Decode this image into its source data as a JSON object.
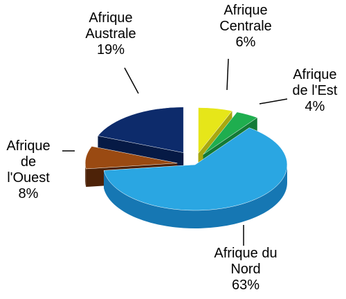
{
  "chart_data": {
    "type": "pie",
    "categories": [
      "Afrique Centrale",
      "Afrique de l'Est",
      "Afrique du Nord",
      "Afrique de l'Ouest",
      "Afrique Australe"
    ],
    "values": [
      6,
      4,
      63,
      8,
      19
    ],
    "value_labels": [
      "6%",
      "4%",
      "63%",
      "8%",
      "19%"
    ],
    "colors": [
      "#e6e619",
      "#1fae4f",
      "#2aa6e2",
      "#9a4a12",
      "#0d2b6b"
    ],
    "side_colors": [
      "#a8a810",
      "#137a36",
      "#1677b3",
      "#4d2208",
      "#061a45"
    ]
  }
}
